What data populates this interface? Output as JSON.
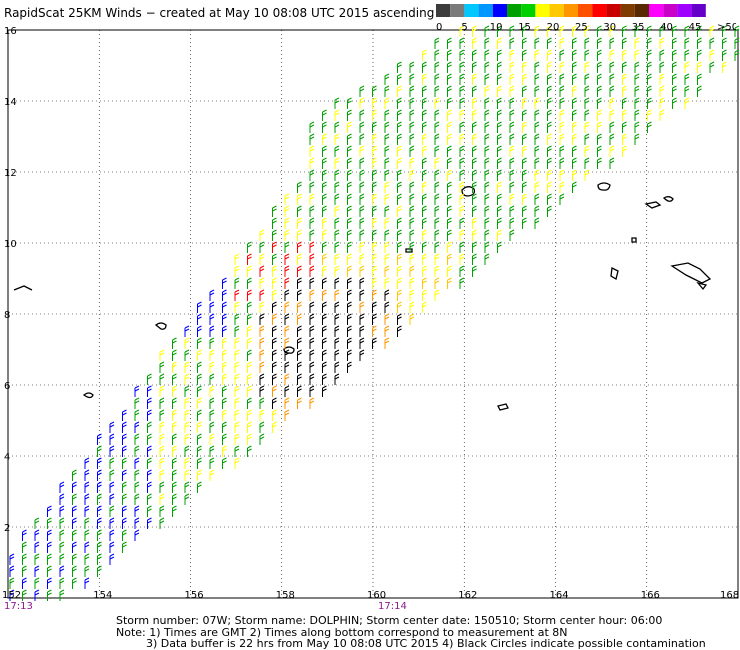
{
  "title": "RapidScat 25KM Winds − created at May 10 08:08 UTC 2015 ascending",
  "legend": {
    "colors": [
      "#3c3c3c",
      "#7a7a7a",
      "#00c8ff",
      "#0096ff",
      "#0000ff",
      "#00a000",
      "#00d000",
      "#ffff00",
      "#ffc800",
      "#ff9600",
      "#ff5000",
      "#ff0000",
      "#c80000",
      "#7f3c00",
      "#5a2800",
      "#ff00ff",
      "#c800c8",
      "#a000ff",
      "#6400c8"
    ],
    "labels": [
      "0",
      "5",
      "10",
      "15",
      "20",
      "25",
      "30",
      "35",
      "40",
      "45",
      ">50 knots"
    ]
  },
  "axes": {
    "lon_ticks": [
      "152",
      "154",
      "156",
      "158",
      "160",
      "162",
      "164",
      "166",
      "168"
    ],
    "lat_ticks": [
      "2",
      "4",
      "6",
      "8",
      "10",
      "12",
      "14",
      "16"
    ]
  },
  "times": {
    "left": "17:13",
    "center": "17:14"
  },
  "footer": {
    "line1": "Storm number: 07W;  Storm name: DOLPHIN;  Storm center date: 150510;  Storm center hour: 06:00",
    "line2": "Note: 1) Times are GMT  2) Times along bottom correspond to measurement at 8N",
    "line3": "3) Data buffer is 22 hrs from May 10 08:08 UTC 2015  4) Black Circles indicate possible contamination"
  }
}
